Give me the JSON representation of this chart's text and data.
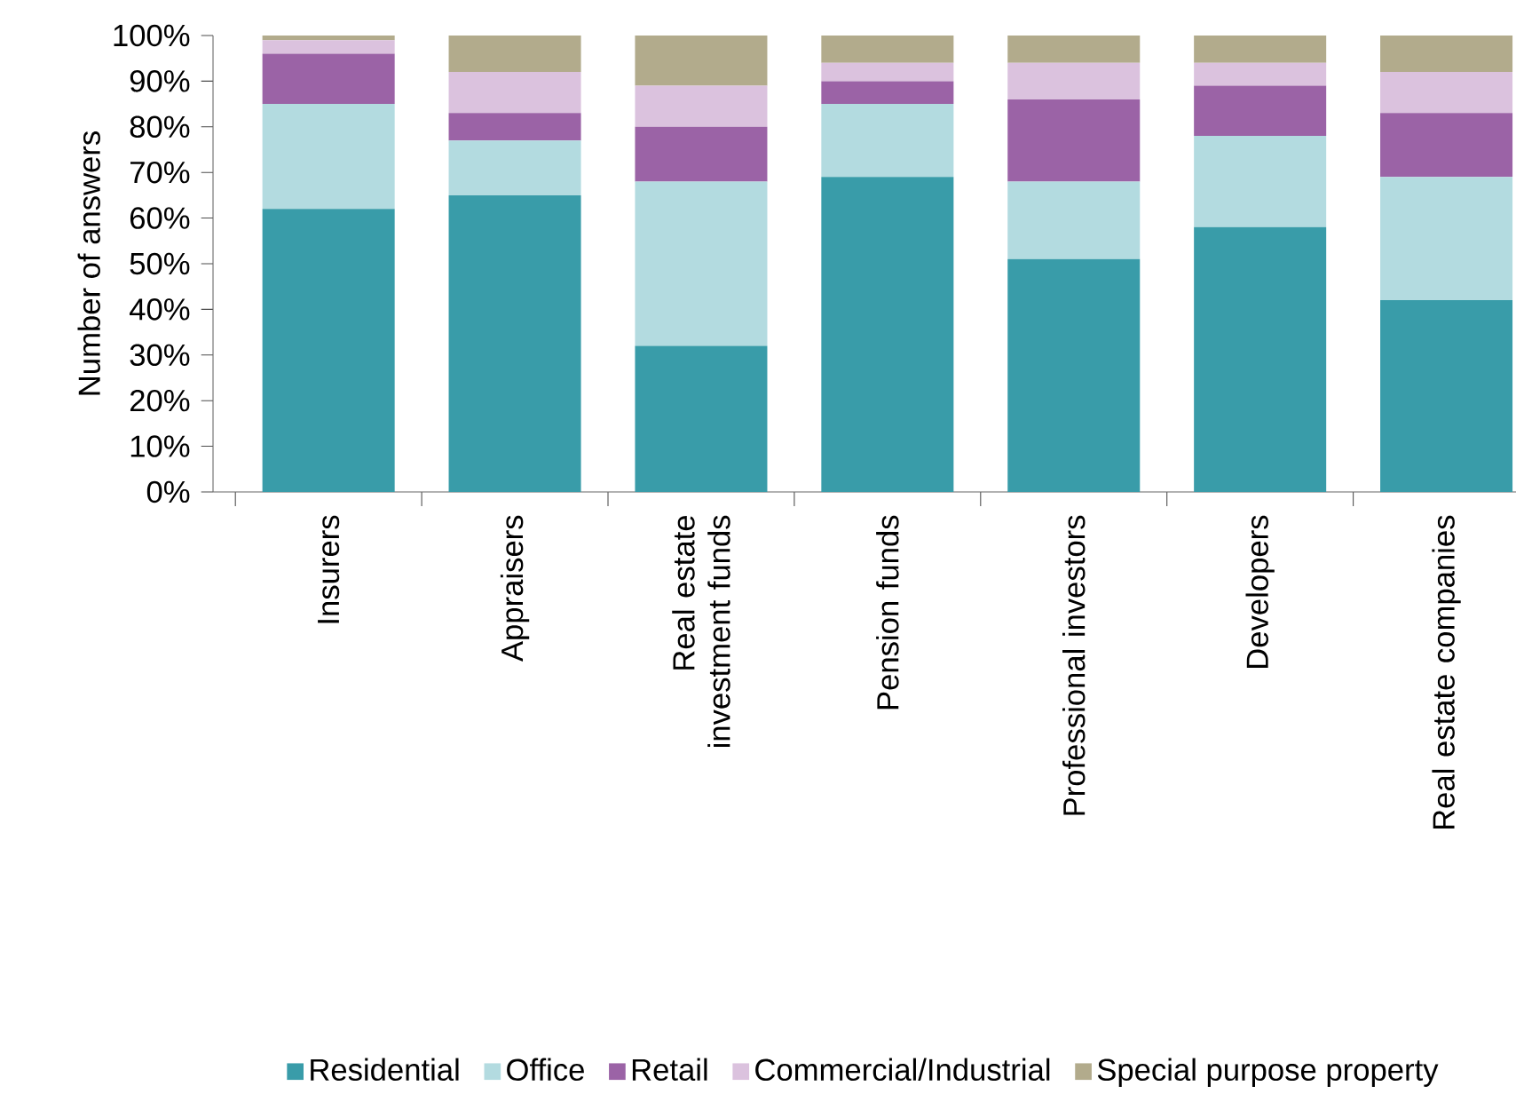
{
  "chart_data": {
    "type": "bar",
    "stacked": true,
    "ylabel": "Number of answers",
    "categories": [
      "Insurers",
      "Appraisers",
      "Real estate investment funds",
      "Pension funds",
      "Professional investors",
      "Developers",
      "Real estate companies"
    ],
    "series": [
      {
        "name": "Residential",
        "color": "#399ca9",
        "values": [
          62,
          65,
          32,
          69,
          51,
          58,
          42
        ]
      },
      {
        "name": "Office",
        "color": "#b3dbe0",
        "values": [
          23,
          12,
          36,
          16,
          17,
          20,
          27
        ]
      },
      {
        "name": "Retail",
        "color": "#9b63a6",
        "values": [
          11,
          6,
          12,
          5,
          18,
          11,
          14
        ]
      },
      {
        "name": "Commercial/Industrial",
        "color": "#dbc2de",
        "values": [
          3,
          9,
          9,
          4,
          8,
          5,
          9
        ]
      },
      {
        "name": "Special purpose property",
        "color": "#b2ab8c",
        "values": [
          1,
          8,
          11,
          6,
          6,
          6,
          8
        ]
      }
    ],
    "ylim": [
      0,
      100
    ],
    "yticks": [
      {
        "value": 0,
        "label": "0%"
      },
      {
        "value": 10,
        "label": "10%"
      },
      {
        "value": 20,
        "label": "20%"
      },
      {
        "value": 30,
        "label": "30%"
      },
      {
        "value": 40,
        "label": "40%"
      },
      {
        "value": 50,
        "label": "50%"
      },
      {
        "value": 60,
        "label": "60%"
      },
      {
        "value": 70,
        "label": "70%"
      },
      {
        "value": 80,
        "label": "80%"
      },
      {
        "value": 90,
        "label": "90%"
      },
      {
        "value": 100,
        "label": "100%"
      }
    ],
    "grid": false,
    "legend": "bottom"
  }
}
